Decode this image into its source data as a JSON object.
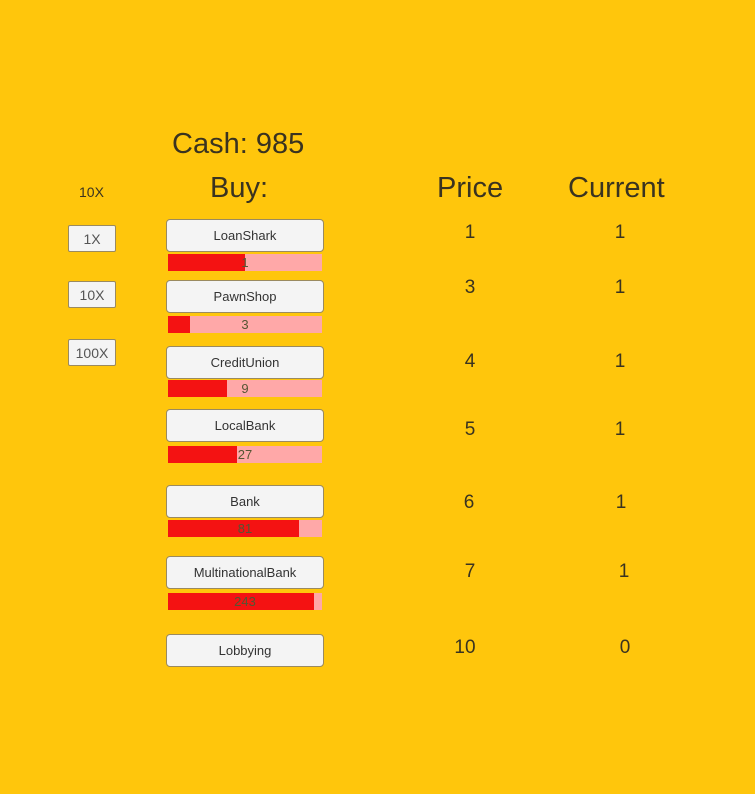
{
  "cash_label": "Cash: 985",
  "buy_label": "Buy:",
  "price_header": "Price",
  "current_header": "Current",
  "multiplier": {
    "current": "10X",
    "options": [
      "1X",
      "10X",
      "100X"
    ]
  },
  "colors": {
    "background": "#FFC60C",
    "progress_fill": "#F41212",
    "progress_track": "#FFA8A8"
  },
  "items": [
    {
      "name": "LoanShark",
      "bar_value": "1",
      "progress": 0.5,
      "price": "1",
      "current": "1"
    },
    {
      "name": "PawnShop",
      "bar_value": "3",
      "progress": 0.14,
      "price": "3",
      "current": "1"
    },
    {
      "name": "CreditUnion",
      "bar_value": "9",
      "progress": 0.38,
      "price": "4",
      "current": "1"
    },
    {
      "name": "LocalBank",
      "bar_value": "27",
      "progress": 0.45,
      "price": "5",
      "current": "1"
    },
    {
      "name": "Bank",
      "bar_value": "81",
      "progress": 0.85,
      "price": "6",
      "current": "1"
    },
    {
      "name": "MultinationalBank",
      "bar_value": "243",
      "progress": 0.95,
      "price": "7",
      "current": "1"
    },
    {
      "name": "Lobbying",
      "price": "10",
      "current": "0"
    }
  ]
}
